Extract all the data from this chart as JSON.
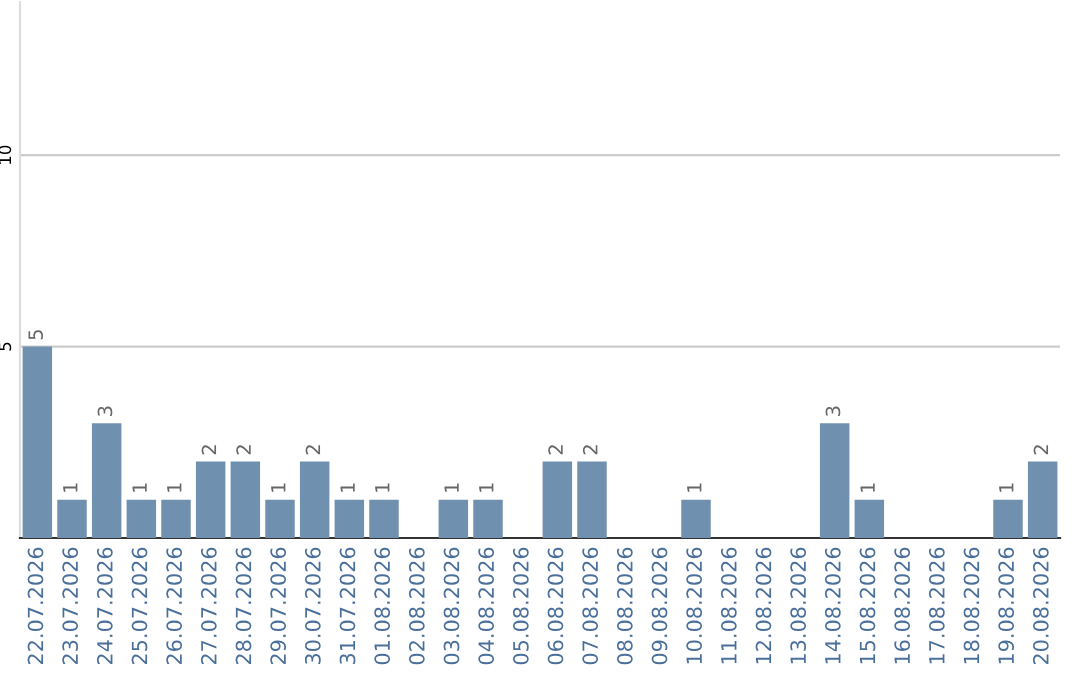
{
  "chart_data": {
    "type": "bar",
    "categories": [
      "22.07.2026",
      "23.07.2026",
      "24.07.2026",
      "25.07.2026",
      "26.07.2026",
      "27.07.2026",
      "28.07.2026",
      "29.07.2026",
      "30.07.2026",
      "31.07.2026",
      "01.08.2026",
      "02.08.2026",
      "03.08.2026",
      "04.08.2026",
      "05.08.2026",
      "06.08.2026",
      "07.08.2026",
      "08.08.2026",
      "09.08.2026",
      "10.08.2026",
      "11.08.2026",
      "12.08.2026",
      "13.08.2026",
      "14.08.2026",
      "15.08.2026",
      "16.08.2026",
      "17.08.2026",
      "18.08.2026",
      "19.08.2026",
      "20.08.2026"
    ],
    "values": [
      5,
      1,
      3,
      1,
      1,
      2,
      2,
      1,
      2,
      1,
      1,
      0,
      1,
      1,
      0,
      2,
      2,
      0,
      0,
      1,
      0,
      0,
      0,
      3,
      1,
      0,
      0,
      0,
      1,
      2
    ],
    "value_labels": [
      "5",
      "1",
      "3",
      "1",
      "1",
      "2",
      "2",
      "1",
      "2",
      "1",
      "1",
      null,
      "1",
      "1",
      null,
      "2",
      "2",
      null,
      null,
      "1",
      null,
      null,
      null,
      "3",
      "1",
      null,
      null,
      null,
      "1",
      "2"
    ],
    "color": "#7090b0",
    "ylim": [
      0,
      14
    ],
    "yticks": [
      5,
      10
    ],
    "grid": "y"
  }
}
